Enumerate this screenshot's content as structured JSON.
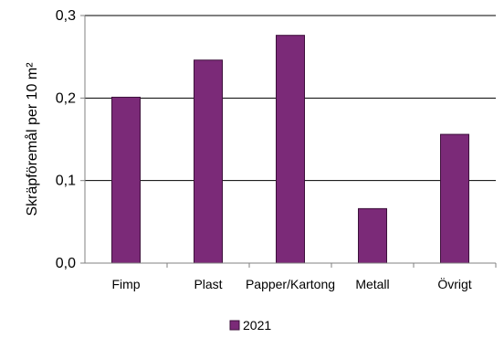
{
  "colors": {
    "bar_fill": "#7B2A78",
    "bar_stroke": "#3d103b",
    "grid": "#000000",
    "axis": "#808080"
  },
  "chart_data": {
    "type": "bar",
    "title": "",
    "xlabel": "",
    "ylabel": "Skräpföremål per 10 m²",
    "ylim": [
      0,
      0.3
    ],
    "yticks": [
      "0,0",
      "0,1",
      "0,2",
      "0,3"
    ],
    "ytick_values": [
      0,
      0.1,
      0.2,
      0.3
    ],
    "grid": "horizontal",
    "legend_position": "bottom",
    "categories": [
      "Fimp",
      "Plast",
      "Papper/Kartong",
      "Metall",
      "Övrigt"
    ],
    "series": [
      {
        "name": "2021",
        "values": [
          0.201,
          0.246,
          0.276,
          0.066,
          0.156
        ]
      }
    ]
  }
}
